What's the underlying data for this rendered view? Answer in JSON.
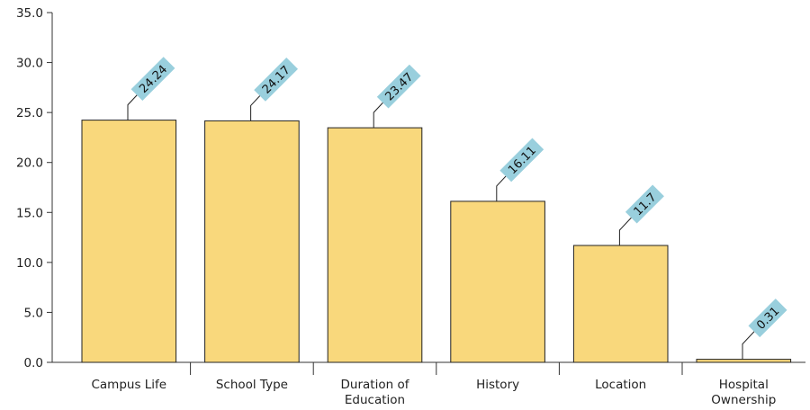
{
  "chart_data": {
    "type": "bar",
    "title": "",
    "xlabel": "",
    "ylabel": "",
    "categories": [
      [
        "Campus Life"
      ],
      [
        "School Type"
      ],
      [
        "Duration of",
        "Education"
      ],
      [
        "History"
      ],
      [
        "Location"
      ],
      [
        "Hospital",
        "Ownership"
      ]
    ],
    "values": [
      24.24,
      24.17,
      23.47,
      16.11,
      11.7,
      0.31
    ],
    "data_labels": [
      "24.24",
      "24.17",
      "23.47",
      "16.11",
      "11.7",
      "0.31"
    ],
    "ylim": [
      0,
      35
    ],
    "yticks": [
      "0.0",
      "5.0",
      "10.0",
      "15.0",
      "20.0",
      "25.0",
      "30.0",
      "35.0"
    ],
    "ytick_values": [
      0,
      5,
      10,
      15,
      20,
      25,
      30,
      35
    ],
    "grid": false,
    "legend": "none",
    "colors": {
      "bar_fill": "#f9d87c",
      "bar_stroke": "#222222",
      "label_fill": "#99cfdd",
      "axis": "#333333"
    }
  }
}
